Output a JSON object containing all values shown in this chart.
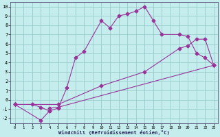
{
  "xlabel": "Windchill (Refroidissement éolien,°C)",
  "bg_color": "#c5eded",
  "line_color": "#993399",
  "grid_color": "#99cccc",
  "xlim": [
    -0.5,
    23.5
  ],
  "ylim": [
    -2.5,
    10.5
  ],
  "xticks": [
    0,
    1,
    2,
    3,
    4,
    5,
    6,
    7,
    8,
    9,
    10,
    11,
    12,
    13,
    14,
    15,
    16,
    17,
    18,
    19,
    20,
    21,
    22,
    23
  ],
  "yticks": [
    -2,
    -1,
    0,
    1,
    2,
    3,
    4,
    5,
    6,
    7,
    8,
    9,
    10
  ],
  "line1_x": [
    0,
    2,
    3,
    4,
    5,
    6,
    7,
    8,
    10,
    11,
    12,
    13,
    14,
    15,
    16,
    17,
    19,
    20,
    21,
    22,
    23
  ],
  "line1_y": [
    -0.5,
    -0.5,
    -0.8,
    -1.2,
    -0.9,
    1.3,
    4.5,
    5.2,
    8.5,
    7.7,
    9.0,
    9.2,
    9.5,
    10.0,
    8.5,
    7.0,
    7.0,
    6.8,
    5.0,
    4.5,
    3.7
  ],
  "line2_x": [
    0,
    3,
    4,
    4,
    5,
    23
  ],
  "line2_y": [
    -0.5,
    -2.2,
    -1.2,
    -0.9,
    -0.8,
    3.7
  ],
  "line3_x": [
    0,
    5,
    10,
    15,
    19,
    20,
    21,
    22,
    23
  ],
  "line3_y": [
    -0.5,
    -0.5,
    1.5,
    3.0,
    5.5,
    5.8,
    6.5,
    6.5,
    3.7
  ]
}
